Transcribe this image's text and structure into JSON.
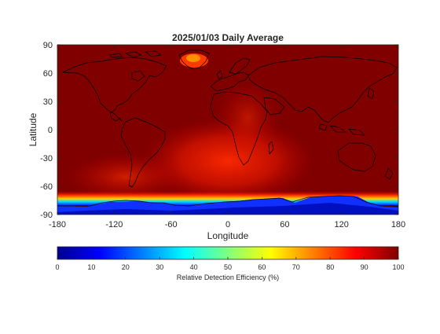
{
  "chart_data": {
    "type": "heatmap",
    "title": "2025/01/03 Daily Average",
    "xlabel": "Longitude",
    "ylabel": "Latitude",
    "xlim": [
      -180,
      180
    ],
    "ylim": [
      -90,
      90
    ],
    "xticks": [
      -180,
      -120,
      -60,
      0,
      60,
      120,
      180
    ],
    "xtick_labels": [
      "-180",
      "-120",
      "-60",
      "0",
      "60",
      "120",
      "180"
    ],
    "yticks": [
      90,
      60,
      30,
      0,
      -30,
      -60,
      -90
    ],
    "ytick_labels": [
      "90",
      "60",
      "30",
      "0",
      "-30",
      "-60",
      "-90"
    ],
    "colormap": "jet",
    "background_color": "#800000",
    "colorbar": {
      "label": "Relative Detection Efficiency (%)",
      "range": [
        0,
        100
      ],
      "ticks": [
        0,
        10,
        20,
        30,
        40,
        50,
        60,
        70,
        80,
        90,
        100
      ],
      "tick_labels": [
        "0",
        "10",
        "20",
        "30",
        "40",
        "50",
        "60",
        "70",
        "80",
        "90",
        "100"
      ],
      "orientation": "horizontal",
      "placement": "bottom"
    },
    "value_summary": {
      "global_typical": 98,
      "south_atlantic_anomaly": 85,
      "greenland": 82,
      "antarctic_margin_approx_lat": -72,
      "antarctic_interior_approx_lat_min": -90,
      "antarctic_interior_value": 5
    },
    "grid": false
  }
}
